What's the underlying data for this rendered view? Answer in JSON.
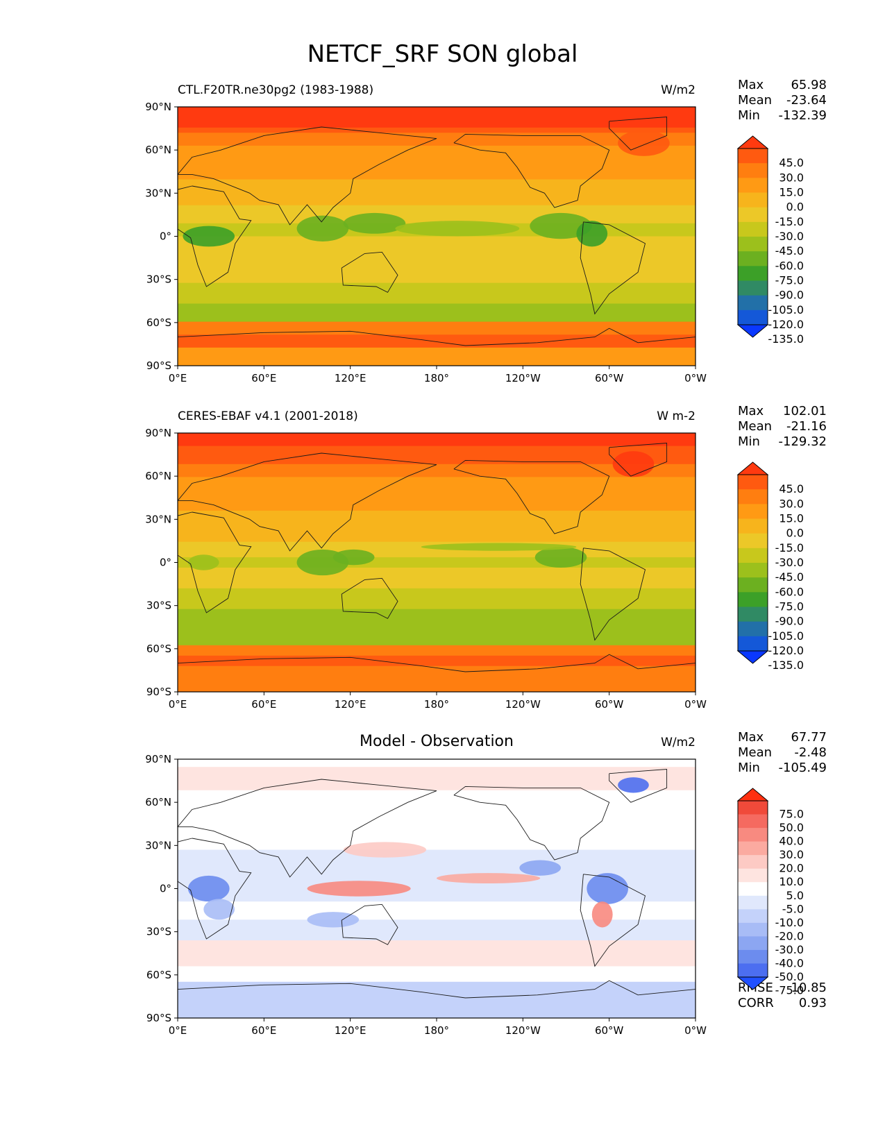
{
  "figure": {
    "title": "NETCF_SRF SON global"
  },
  "axes": {
    "lat_labels": [
      "90°N",
      "60°N",
      "30°N",
      "0°",
      "30°S",
      "60°S",
      "90°S"
    ],
    "lon_labels": [
      "0°E",
      "60°E",
      "120°E",
      "180°",
      "120°W",
      "60°W",
      "0°W"
    ]
  },
  "panels": [
    {
      "title": "CTL.F20TR.ne30pg2 (1983-1988)",
      "units": "W/m2",
      "stats": [
        {
          "label": "Max",
          "value": "65.98"
        },
        {
          "label": "Mean",
          "value": "-23.64"
        },
        {
          "label": "Min",
          "value": "-132.39"
        }
      ],
      "colorbar": {
        "labels": [
          "45.0",
          "30.0",
          "15.0",
          "0.0",
          "-15.0",
          "-30.0",
          "-45.0",
          "-60.0",
          "-75.0",
          "-90.0",
          "-105.0",
          "-120.0",
          "-135.0"
        ],
        "colors": [
          "#ff3a10",
          "#ff5a10",
          "#ff7e10",
          "#ff9a14",
          "#f7b41c",
          "#ecc828",
          "#c8c81c",
          "#9cc01c",
          "#6cb020",
          "#3ca028",
          "#308a64",
          "#2270a8",
          "#1458d8",
          "#0a38ff"
        ]
      }
    },
    {
      "title": "CERES-EBAF v4.1 (2001-2018)",
      "units": "W m-2",
      "stats": [
        {
          "label": "Max",
          "value": "102.01"
        },
        {
          "label": "Mean",
          "value": "-21.16"
        },
        {
          "label": "Min",
          "value": "-129.32"
        }
      ],
      "colorbar": {
        "labels": [
          "45.0",
          "30.0",
          "15.0",
          "0.0",
          "-15.0",
          "-30.0",
          "-45.0",
          "-60.0",
          "-75.0",
          "-90.0",
          "-105.0",
          "-120.0",
          "-135.0"
        ],
        "colors": [
          "#ff3a10",
          "#ff5a10",
          "#ff7e10",
          "#ff9a14",
          "#f7b41c",
          "#ecc828",
          "#c8c81c",
          "#9cc01c",
          "#6cb020",
          "#3ca028",
          "#308a64",
          "#2270a8",
          "#1458d8",
          "#0a38ff"
        ]
      }
    },
    {
      "title": "Model - Observation",
      "units": "W/m2",
      "stats": [
        {
          "label": "Max",
          "value": "67.77"
        },
        {
          "label": "Mean",
          "value": "-2.48"
        },
        {
          "label": "Min",
          "value": "-105.49"
        }
      ],
      "colorbar": {
        "labels": [
          "75.0",
          "50.0",
          "40.0",
          "30.0",
          "20.0",
          "10.0",
          "5.0",
          "-5.0",
          "-10.0",
          "-20.0",
          "-30.0",
          "-40.0",
          "-50.0",
          "-75.0"
        ],
        "colors": [
          "#ff3010",
          "#f04a3a",
          "#f56a60",
          "#f88a80",
          "#fbaaa0",
          "#fdcac4",
          "#fee4e0",
          "#ffffff",
          "#e0e8fc",
          "#c4d2fa",
          "#a8bcf6",
          "#8ca6f2",
          "#6c8cee",
          "#4c6ef0",
          "#2050ff"
        ]
      },
      "extra_stats": [
        {
          "label": "RMSE",
          "value": "10.85"
        },
        {
          "label": "CORR",
          "value": "0.93"
        }
      ]
    }
  ]
}
